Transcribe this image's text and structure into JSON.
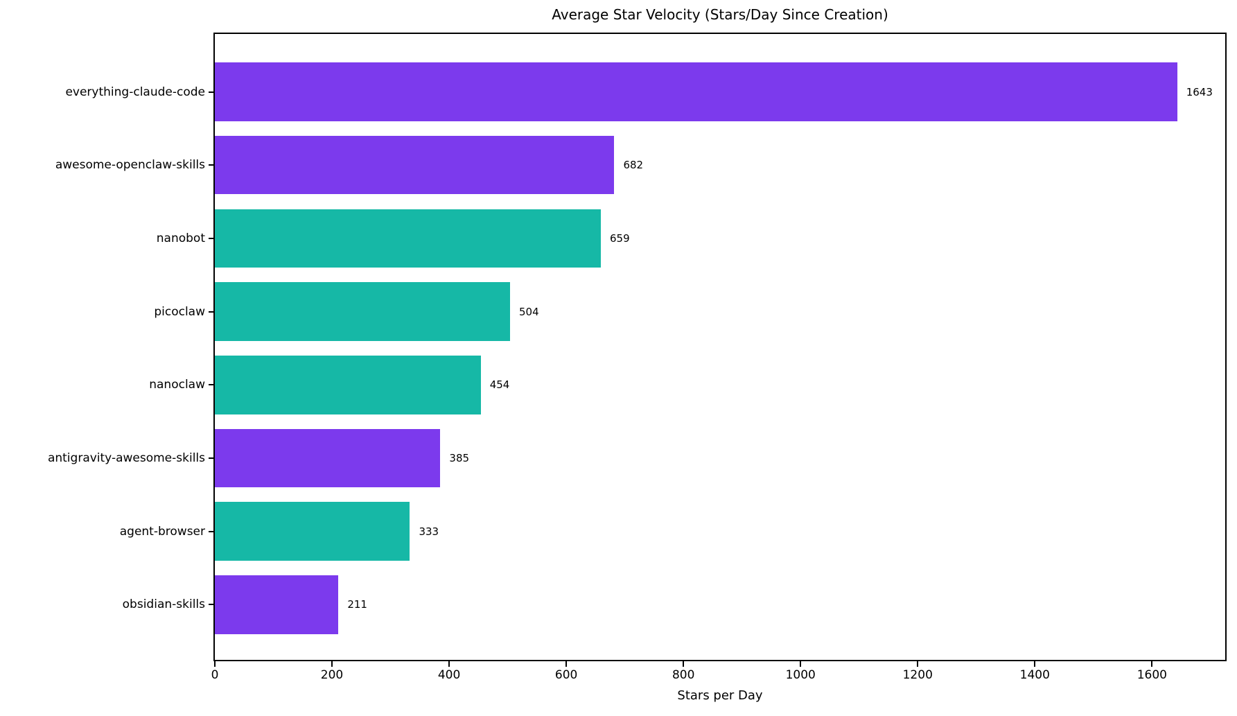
{
  "chart_data": {
    "type": "bar",
    "orientation": "horizontal",
    "title": "Average Star Velocity (Stars/Day Since Creation)",
    "xlabel": "Stars per Day",
    "ylabel": "",
    "categories": [
      "everything-claude-code",
      "awesome-openclaw-skills",
      "nanobot",
      "picoclaw",
      "nanoclaw",
      "antigravity-awesome-skills",
      "agent-browser",
      "obsidian-skills"
    ],
    "values": [
      1643,
      682,
      659,
      504,
      454,
      385,
      333,
      211
    ],
    "value_labels": [
      "1643",
      "682",
      "659",
      "504",
      "454",
      "385",
      "333",
      "211"
    ],
    "bar_colors": [
      "#7c3aed",
      "#7c3aed",
      "#16b8a6",
      "#16b8a6",
      "#16b8a6",
      "#7c3aed",
      "#16b8a6",
      "#7c3aed"
    ],
    "xlim": [
      0,
      1725
    ],
    "xticks": [
      0,
      200,
      400,
      600,
      800,
      1000,
      1200,
      1400,
      1600
    ],
    "grid": false,
    "legend": null,
    "colors": {
      "purple": "#7c3aed",
      "teal": "#16b8a6",
      "axis": "#000000",
      "background": "#ffffff",
      "text": "#000000"
    }
  }
}
